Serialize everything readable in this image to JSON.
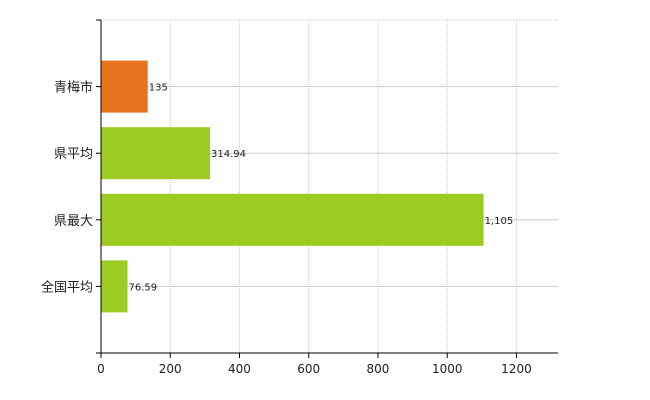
{
  "chart_data": {
    "type": "bar",
    "orientation": "horizontal",
    "categories": [
      "青梅市",
      "県平均",
      "県最大",
      "全国平均"
    ],
    "values": [
      135,
      314.94,
      1105,
      76.59
    ],
    "value_labels": [
      "135",
      "314.94",
      "1,105",
      "76.59"
    ],
    "bar_colors": [
      "#E8731F",
      "#9DCB21",
      "#9DCB21",
      "#9DCB21"
    ],
    "xlim": [
      0,
      1320
    ],
    "xticks": [
      0,
      200,
      400,
      600,
      800,
      1000,
      1200
    ],
    "xtick_labels": [
      "0",
      "200",
      "400",
      "600",
      "800",
      "1000",
      "1200"
    ],
    "grid": true,
    "title": "",
    "xlabel": "",
    "ylabel": ""
  },
  "colors": {
    "grid": "#cccccc",
    "axis": "#000000"
  }
}
